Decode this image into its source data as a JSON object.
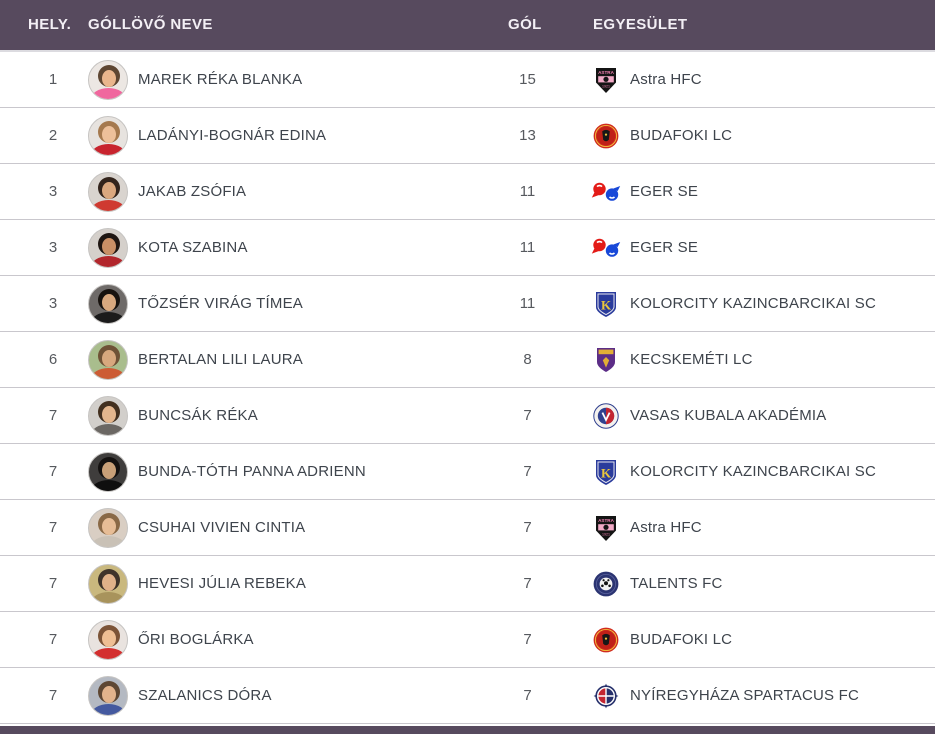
{
  "table": {
    "columns": [
      {
        "key": "rank",
        "label": "HELY."
      },
      {
        "key": "name",
        "label": "GÓLLÖVŐ NEVE"
      },
      {
        "key": "goals",
        "label": "GÓL"
      },
      {
        "key": "club",
        "label": "EGYESÜLET"
      }
    ],
    "rows": [
      {
        "rank": "1",
        "name": "MAREK RÉKA BLANKA",
        "goals": "15",
        "club": "Astra HFC",
        "logo": "astra-hfc",
        "avatar": {
          "bg": "#ece7e3",
          "hair": "#5e4632",
          "skin": "#eab68d",
          "shirt": "#f0679e"
        }
      },
      {
        "rank": "2",
        "name": "LADÁNYI-BOGNÁR EDINA",
        "goals": "13",
        "club": "BUDAFOKI LC",
        "logo": "budafoki-lc",
        "avatar": {
          "bg": "#e7e3df",
          "hair": "#a5794e",
          "skin": "#edc09a",
          "shirt": "#c8242e"
        }
      },
      {
        "rank": "3",
        "name": "JAKAB ZSÓFIA",
        "goals": "11",
        "club": "EGER SE",
        "logo": "eger-se",
        "avatar": {
          "bg": "#d9d4cf",
          "hair": "#33241c",
          "skin": "#dba87f",
          "shirt": "#cf3a31"
        }
      },
      {
        "rank": "3",
        "name": "KOTA SZABINA",
        "goals": "11",
        "club": "EGER SE",
        "logo": "eger-se",
        "avatar": {
          "bg": "#d5d0cb",
          "hair": "#1f1612",
          "skin": "#c98f66",
          "shirt": "#b2262c"
        }
      },
      {
        "rank": "3",
        "name": "TŐZSÉR VIRÁG TÍMEA",
        "goals": "11",
        "club": "KOLORCITY KAZINCBARCIKAI SC",
        "logo": "kolorcity-kazincbarcikai-sc",
        "avatar": {
          "bg": "#6e6a68",
          "hair": "#17120e",
          "skin": "#d8a87e",
          "shirt": "#1b1b1b"
        }
      },
      {
        "rank": "6",
        "name": "BERTALAN LILI LAURA",
        "goals": "8",
        "club": "KECSKEMÉTI LC",
        "logo": "kecskemeti-lc",
        "avatar": {
          "bg": "#a9bd8d",
          "hair": "#6f5236",
          "skin": "#d8a87e",
          "shirt": "#cc5c35"
        }
      },
      {
        "rank": "7",
        "name": "BUNCSÁK RÉKA",
        "goals": "7",
        "club": "VASAS KUBALA AKADÉMIA",
        "logo": "vasas-kubala-akademia",
        "avatar": {
          "bg": "#d2cfcb",
          "hair": "#43301f",
          "skin": "#e4b68d",
          "shirt": "#6b6763"
        }
      },
      {
        "rank": "7",
        "name": "BUNDA-TÓTH PANNA ADRIENN",
        "goals": "7",
        "club": "KOLORCITY KAZINCBARCIKAI SC",
        "logo": "kolorcity-kazincbarcikai-sc",
        "avatar": {
          "bg": "#3f3d3c",
          "hair": "#141110",
          "skin": "#c9a078",
          "shirt": "#0f0f0f"
        }
      },
      {
        "rank": "7",
        "name": "CSUHAI VIVIEN CINTIA",
        "goals": "7",
        "club": "Astra HFC",
        "logo": "astra-hfc",
        "avatar": {
          "bg": "#d9cec3",
          "hair": "#8a6946",
          "skin": "#e7bd96",
          "shirt": "#c9c1b6"
        }
      },
      {
        "rank": "7",
        "name": "HEVESI JÚLIA REBEKA",
        "goals": "7",
        "club": "TALENTS FC",
        "logo": "talents-fc",
        "avatar": {
          "bg": "#c9b87e",
          "hair": "#3e332a",
          "skin": "#dfb189",
          "shirt": "#a8935c"
        }
      },
      {
        "rank": "7",
        "name": "ŐRI BOGLÁRKA",
        "goals": "7",
        "club": "BUDAFOKI LC",
        "logo": "budafoki-lc",
        "avatar": {
          "bg": "#e9e3df",
          "hair": "#7c5437",
          "skin": "#efbf94",
          "shirt": "#d32f2f"
        }
      },
      {
        "rank": "7",
        "name": "SZALANICS DÓRA",
        "goals": "7",
        "club": "NYÍREGYHÁZA SPARTACUS FC",
        "logo": "nyiregyhaza-spartacus-fc",
        "avatar": {
          "bg": "#b4b9c2",
          "hair": "#5e4733",
          "skin": "#e2b38c",
          "shirt": "#44599f"
        }
      }
    ]
  },
  "colors": {
    "header_bg": "#574a5e",
    "header_text": "#f3eff5",
    "row_border": "#c9c7cd",
    "name_text": "#3e444c",
    "number_text": "#56595e",
    "club_brand": {
      "astra-hfc": "#f2aac7",
      "budafoki-lc": "#d02a1e",
      "eger-se": "#e31b17",
      "kolorcity-kazincbarcikai-sc": "#2a3b9c",
      "kecskemeti-lc": "#5c2d87",
      "vasas-kubala-akademia": "#31418f",
      "talents-fc": "#2b3472",
      "nyiregyhaza-spartacus-fc": "#26306b"
    }
  }
}
